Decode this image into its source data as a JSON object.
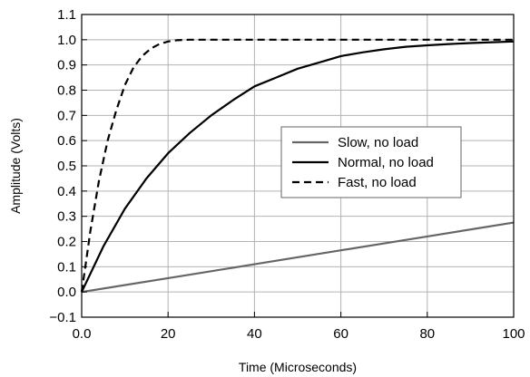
{
  "chart_data": {
    "type": "line",
    "title": "",
    "xlabel": "Time (Microseconds)",
    "ylabel": "Amplitude (Volts)",
    "xlim": [
      0,
      100
    ],
    "ylim": [
      -0.1,
      1.1
    ],
    "x_ticks": [
      "0.0",
      "20",
      "40",
      "60",
      "80",
      "100"
    ],
    "y_ticks": [
      "1.1",
      "1.0",
      "0.9",
      "0.8",
      "0.7",
      "0.6",
      "0.5",
      "0.4",
      "0.3",
      "0.2",
      "0.1",
      "0.0",
      "−0.1"
    ],
    "grid": true,
    "legend_position": "center-right",
    "series": [
      {
        "name": "Slow, no load",
        "color": "#666666",
        "style": "solid",
        "x": [
          0,
          20,
          40,
          60,
          80,
          100
        ],
        "y": [
          0.0,
          0.055,
          0.11,
          0.165,
          0.22,
          0.275
        ]
      },
      {
        "name": "Normal, no load",
        "color": "#000000",
        "style": "solid",
        "x": [
          0,
          5,
          10,
          15,
          20,
          25,
          30,
          35,
          40,
          45,
          50,
          55,
          60,
          65,
          70,
          75,
          80,
          85,
          90,
          95,
          100
        ],
        "y": [
          0.0,
          0.18,
          0.33,
          0.45,
          0.55,
          0.63,
          0.7,
          0.76,
          0.815,
          0.85,
          0.885,
          0.91,
          0.935,
          0.95,
          0.962,
          0.972,
          0.978,
          0.983,
          0.987,
          0.99,
          0.993
        ]
      },
      {
        "name": "Fast, no load",
        "color": "#000000",
        "style": "dashed",
        "x": [
          0,
          1,
          2,
          4,
          6,
          8,
          10,
          12,
          14,
          16,
          18,
          20,
          22,
          25,
          30,
          40,
          60,
          80,
          100
        ],
        "y": [
          0.0,
          0.12,
          0.24,
          0.44,
          0.6,
          0.72,
          0.82,
          0.89,
          0.935,
          0.965,
          0.983,
          0.993,
          0.998,
          1.0,
          1.0,
          1.0,
          1.0,
          1.0,
          1.0
        ]
      }
    ]
  }
}
